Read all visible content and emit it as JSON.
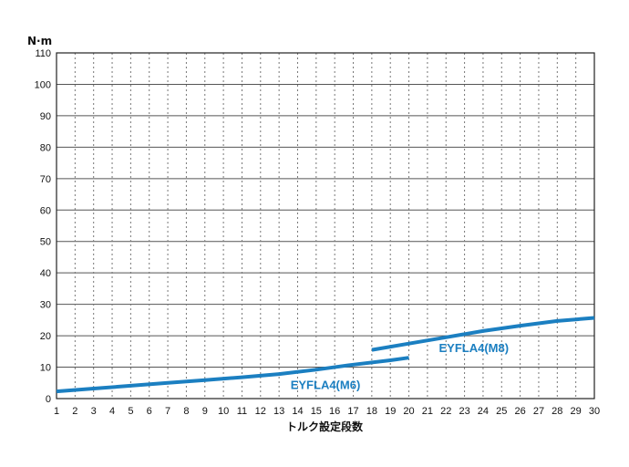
{
  "chart_data": {
    "type": "line",
    "title": "",
    "ylabel": "N·m",
    "xlabel": "トルク設定段数",
    "xlim": [
      1,
      30
    ],
    "ylim": [
      0,
      110
    ],
    "x_ticks": [
      1,
      2,
      3,
      4,
      5,
      6,
      7,
      8,
      9,
      10,
      11,
      12,
      13,
      14,
      15,
      16,
      17,
      18,
      19,
      20,
      21,
      22,
      23,
      24,
      25,
      26,
      27,
      28,
      29,
      30
    ],
    "y_ticks": [
      0,
      10,
      20,
      30,
      40,
      50,
      60,
      70,
      80,
      90,
      100,
      110
    ],
    "grid": {
      "horizontal": "solid",
      "vertical": "dashed"
    },
    "line_color": "#1b7fc1",
    "series": [
      {
        "name": "EYFLA4(M6)",
        "x": [
          1,
          3,
          5,
          7,
          9,
          11,
          13,
          15,
          17,
          19,
          20
        ],
        "y": [
          2.3,
          3.2,
          4.1,
          5.0,
          5.9,
          6.8,
          7.8,
          9.2,
          10.8,
          12.2,
          13.0
        ]
      },
      {
        "name": "EYFLA4(M8)",
        "x": [
          18,
          20,
          22,
          24,
          26,
          28,
          30
        ],
        "y": [
          15.5,
          17.5,
          19.5,
          21.5,
          23.2,
          24.7,
          25.7
        ]
      }
    ]
  }
}
